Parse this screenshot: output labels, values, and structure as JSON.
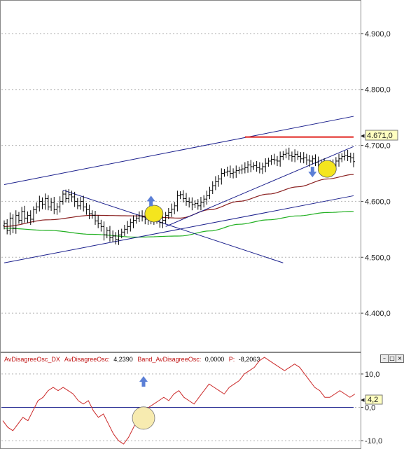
{
  "main_panel": {
    "last_price_label": "4.671,0",
    "cursor_marker": "◂",
    "colors": {
      "price_bars": "#000000",
      "trendlines": "#1a1f8c",
      "horizontal_level": "#e0201c",
      "ma_slow": "#22b022",
      "ma_fast": "#8a2020",
      "signal_arrow": "#5b7fd6",
      "highlight_ellipse": "#f4e51e",
      "price_label_bg": "#ffffc0"
    }
  },
  "osc_panel": {
    "header": {
      "name": "AvDisagreeOsc_DX",
      "series_label": "AvDisagreeOsc:",
      "series_value": "4,2390",
      "band_label": "Band_AvDisagreeOsc:",
      "band_value": "0,0000",
      "p_label": "P:",
      "p_value": "-8,2063"
    },
    "last_value_label": "4,2",
    "buttons": {
      "minimize": "–",
      "restore": "□",
      "close": "×"
    },
    "colors": {
      "osc_line": "#cc2a2a",
      "band_line": "#1a1f8c",
      "header_red": "#c01010",
      "highlight": "#f7ebb0"
    }
  },
  "chart_data": [
    {
      "type": "ohlc",
      "ylim": [
        4330,
        4960
      ],
      "y_ticks": [
        {
          "value": 4400,
          "label": "4.400,0"
        },
        {
          "value": 4500,
          "label": "4.500,0"
        },
        {
          "value": 4600,
          "label": "4.600,0"
        },
        {
          "value": 4700,
          "label": "4.700,0"
        },
        {
          "value": 4800,
          "label": "4.800,0"
        },
        {
          "value": 4900,
          "label": "4.900,0"
        }
      ],
      "x_count": 120,
      "close": [
        4560,
        4548,
        4570,
        4552,
        4575,
        4566,
        4582,
        4570,
        4575,
        4568,
        4585,
        4590,
        4600,
        4595,
        4605,
        4590,
        4598,
        4585,
        4590,
        4600,
        4613,
        4605,
        4612,
        4608,
        4600,
        4592,
        4600,
        4590,
        4585,
        4578,
        4575,
        4565,
        4560,
        4555,
        4540,
        4548,
        4535,
        4538,
        4532,
        4540,
        4545,
        4550,
        4555,
        4562,
        4566,
        4570,
        4574,
        4572,
        4568,
        4572,
        4565,
        4568,
        4570,
        4562,
        4566,
        4575,
        4580,
        4586,
        4592,
        4610,
        4612,
        4605,
        4600,
        4598,
        4594,
        4596,
        4592,
        4598,
        4604,
        4610,
        4620,
        4628,
        4635,
        4640,
        4650,
        4652,
        4654,
        4650,
        4652,
        4655,
        4656,
        4658,
        4660,
        4665,
        4662,
        4664,
        4660,
        4658,
        4662,
        4668,
        4672,
        4675,
        4674,
        4672,
        4680,
        4684,
        4686,
        4682,
        4680,
        4684,
        4680,
        4676,
        4678,
        4674,
        4672,
        4676,
        4670,
        4665,
        4668,
        4664,
        4666,
        4660,
        4665,
        4672,
        4676,
        4680,
        4682,
        4680,
        4678,
        4671
      ],
      "ma_slow": [
        [
          0,
          4552
        ],
        [
          15,
          4548
        ],
        [
          30,
          4541
        ],
        [
          45,
          4536
        ],
        [
          60,
          4538
        ],
        [
          70,
          4547
        ],
        [
          80,
          4559
        ],
        [
          90,
          4567
        ],
        [
          100,
          4574
        ],
        [
          110,
          4580
        ],
        [
          119,
          4582
        ]
      ],
      "ma_fast": [
        [
          0,
          4555
        ],
        [
          15,
          4567
        ],
        [
          30,
          4575
        ],
        [
          45,
          4574
        ],
        [
          60,
          4570
        ],
        [
          70,
          4585
        ],
        [
          80,
          4600
        ],
        [
          90,
          4613
        ],
        [
          100,
          4626
        ],
        [
          110,
          4640
        ],
        [
          119,
          4648
        ]
      ],
      "trendlines": [
        {
          "from": [
            0,
            4630
          ],
          "to": [
            119,
            4752
          ]
        },
        {
          "from": [
            0,
            4490
          ],
          "to": [
            119,
            4610
          ]
        },
        {
          "from": [
            20,
            4620
          ],
          "to": [
            95,
            4490
          ]
        },
        {
          "from": [
            55,
            4555
          ],
          "to": [
            119,
            4698
          ]
        }
      ],
      "horizontal_level": {
        "value": 4715,
        "from_index": 82
      },
      "signals": [
        {
          "type": "up",
          "index": 50,
          "price": 4600
        },
        {
          "type": "down",
          "index": 105,
          "price": 4653
        }
      ],
      "highlights": [
        {
          "index": 51,
          "price": 4578
        },
        {
          "index": 110,
          "price": 4658
        }
      ]
    },
    {
      "type": "line",
      "ylim": [
        -12.5,
        16.5
      ],
      "y_ticks": [
        {
          "value": 10,
          "label": "10,0"
        },
        {
          "value": 0,
          "label": "0,0"
        },
        {
          "value": -10,
          "label": "-10,0"
        }
      ],
      "band": 0,
      "series": [
        {
          "name": "AvDisagreeOsc",
          "values": [
            -4,
            -6,
            -7,
            -5,
            -3,
            -4,
            -1,
            2,
            3,
            5,
            6,
            5,
            6,
            5,
            4,
            2,
            1,
            2,
            -1,
            -3,
            -2,
            -5,
            -8,
            -10,
            -11,
            -9,
            -6,
            -3,
            -1,
            0,
            1,
            2,
            3,
            2,
            4,
            5,
            3,
            2,
            1,
            3,
            5,
            7,
            6,
            5,
            4,
            6,
            7,
            8,
            10,
            11,
            12,
            14,
            15,
            14,
            13,
            12,
            11,
            12,
            13,
            12,
            10,
            8,
            6,
            5,
            3,
            3,
            4,
            5,
            4,
            3,
            4
          ]
        }
      ],
      "signal_up_index": 27,
      "highlight_index": 27
    }
  ]
}
